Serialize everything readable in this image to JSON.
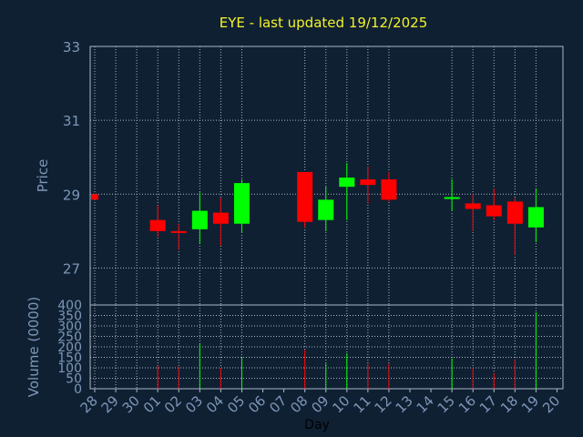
{
  "title": "EYE - last updated 19/12/2025",
  "chart_data": [
    {
      "type": "candlestick",
      "ylabel": "Price",
      "ylim": [
        26,
        33
      ],
      "yticks": [
        27,
        29,
        31,
        33
      ],
      "grid": true,
      "colors": {
        "up": "#00ff00",
        "down": "#ff0000"
      },
      "x": [
        "28",
        "29",
        "30",
        "01",
        "02",
        "03",
        "04",
        "05",
        "06",
        "07",
        "08",
        "09",
        "10",
        "11",
        "12",
        "13",
        "14",
        "15",
        "16",
        "17",
        "18",
        "19",
        "20"
      ],
      "candles": [
        {
          "day": "28",
          "open": 29.0,
          "close": 28.85,
          "high": 29.0,
          "low": 28.85
        },
        {
          "day": "01",
          "open": 28.3,
          "close": 28.0,
          "high": 28.7,
          "low": 27.85
        },
        {
          "day": "02",
          "open": 28.0,
          "close": 27.95,
          "high": 28.2,
          "low": 27.5
        },
        {
          "day": "03",
          "open": 28.05,
          "close": 28.55,
          "high": 29.05,
          "low": 27.65
        },
        {
          "day": "04",
          "open": 28.5,
          "close": 28.2,
          "high": 28.9,
          "low": 27.6
        },
        {
          "day": "05",
          "open": 28.2,
          "close": 29.3,
          "high": 29.4,
          "low": 27.95
        },
        {
          "day": "08",
          "open": 29.6,
          "close": 28.25,
          "high": 29.6,
          "low": 28.1
        },
        {
          "day": "09",
          "open": 28.3,
          "close": 28.85,
          "high": 29.2,
          "low": 28.0
        },
        {
          "day": "10",
          "open": 29.2,
          "close": 29.45,
          "high": 29.85,
          "low": 28.3
        },
        {
          "day": "11",
          "open": 29.4,
          "close": 29.25,
          "high": 29.75,
          "low": 28.75
        },
        {
          "day": "12",
          "open": 29.4,
          "close": 28.85,
          "high": 29.6,
          "low": 28.8
        },
        {
          "day": "15",
          "open": 28.9,
          "close": 28.92,
          "high": 29.4,
          "low": 28.55
        },
        {
          "day": "16",
          "open": 28.75,
          "close": 28.6,
          "high": 29.0,
          "low": 28.0
        },
        {
          "day": "17",
          "open": 28.7,
          "close": 28.4,
          "high": 29.15,
          "low": 28.3
        },
        {
          "day": "18",
          "open": 28.8,
          "close": 28.2,
          "high": 28.9,
          "low": 27.35
        },
        {
          "day": "19",
          "open": 28.1,
          "close": 28.65,
          "high": 29.15,
          "low": 27.7
        }
      ]
    },
    {
      "type": "bar",
      "ylabel": "Volume (0000)",
      "xlabel": "Day",
      "ylim": [
        0,
        400
      ],
      "yticks": [
        0,
        50,
        100,
        150,
        200,
        250,
        300,
        350,
        400
      ],
      "grid": true,
      "x": [
        "28",
        "29",
        "30",
        "01",
        "02",
        "03",
        "04",
        "05",
        "06",
        "07",
        "08",
        "09",
        "10",
        "11",
        "12",
        "13",
        "14",
        "15",
        "16",
        "17",
        "18",
        "19",
        "20"
      ],
      "volumes": [
        {
          "day": "01",
          "value": 110,
          "direction": "down"
        },
        {
          "day": "02",
          "value": 105,
          "direction": "down"
        },
        {
          "day": "03",
          "value": 215,
          "direction": "up"
        },
        {
          "day": "04",
          "value": 100,
          "direction": "down"
        },
        {
          "day": "05",
          "value": 150,
          "direction": "up"
        },
        {
          "day": "08",
          "value": 185,
          "direction": "down"
        },
        {
          "day": "09",
          "value": 120,
          "direction": "up"
        },
        {
          "day": "10",
          "value": 170,
          "direction": "up"
        },
        {
          "day": "11",
          "value": 120,
          "direction": "down"
        },
        {
          "day": "12",
          "value": 120,
          "direction": "down"
        },
        {
          "day": "15",
          "value": 145,
          "direction": "up"
        },
        {
          "day": "16",
          "value": 100,
          "direction": "down"
        },
        {
          "day": "17",
          "value": 75,
          "direction": "down"
        },
        {
          "day": "18",
          "value": 140,
          "direction": "down"
        },
        {
          "day": "19",
          "value": 365,
          "direction": "up"
        }
      ]
    }
  ]
}
